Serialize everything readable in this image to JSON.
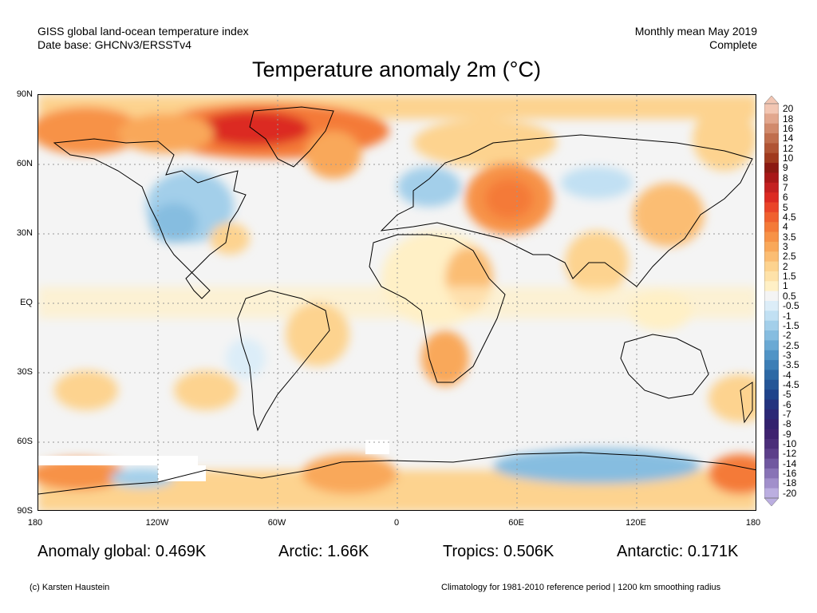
{
  "header": {
    "left_line1": "GISS global land-ocean temperature index",
    "left_line2": "Date base: GHCNv3/ERSSTv4",
    "right_line1": "Monthly mean May 2019",
    "right_line2": "Complete"
  },
  "title": "Temperature anomaly 2m (°C)",
  "lat_labels": [
    "90N",
    "60N",
    "30N",
    "EQ",
    "30S",
    "60S",
    "90S"
  ],
  "lon_labels": [
    "180",
    "120W",
    "60W",
    "0",
    "60E",
    "120E",
    "180"
  ],
  "colorbar": {
    "labels": [
      "20",
      "18",
      "16",
      "14",
      "12",
      "10",
      "9",
      "8",
      "7",
      "6",
      "5",
      "4.5",
      "4",
      "3.5",
      "3",
      "2.5",
      "2",
      "1.5",
      "1",
      "0.5",
      "-0.5",
      "-1",
      "-1.5",
      "-2",
      "-2.5",
      "-3",
      "-3.5",
      "-4",
      "-4.5",
      "-5",
      "-6",
      "-7",
      "-8",
      "-9",
      "-10",
      "-12",
      "-14",
      "-16",
      "-18",
      "-20"
    ],
    "colors": [
      "#f2c6b3",
      "#e2a78e",
      "#d18a6c",
      "#c06e4d",
      "#b05434",
      "#a03a1e",
      "#8b1a12",
      "#a81818",
      "#c42020",
      "#dc2a22",
      "#ea4428",
      "#f0602e",
      "#f47a38",
      "#f79247",
      "#f9a85a",
      "#fbbd73",
      "#fdd38f",
      "#fee2a9",
      "#fff0c6",
      "#f4f4f4",
      "#dcedf8",
      "#c1e0f3",
      "#a3cfea",
      "#86bde0",
      "#6aa9d4",
      "#5094c6",
      "#3c7eb6",
      "#2d69a5",
      "#245697",
      "#1f438b",
      "#23337f",
      "#2b2876",
      "#33226e",
      "#3f2370",
      "#4b2e7a",
      "#5c3f8a",
      "#7058a0",
      "#8873b6",
      "#a18fcb",
      "#bbaee0"
    ]
  },
  "stats": {
    "global": "Anomaly global: 0.469K",
    "arctic": "Arctic: 1.66K",
    "tropics": "Tropics: 0.506K",
    "antarctic": "Antarctic: 0.171K"
  },
  "footer": {
    "credit": "(c) Karsten Haustein",
    "note": "Climatology for 1981-2010 reference period | 1200 km smoothing radius"
  }
}
